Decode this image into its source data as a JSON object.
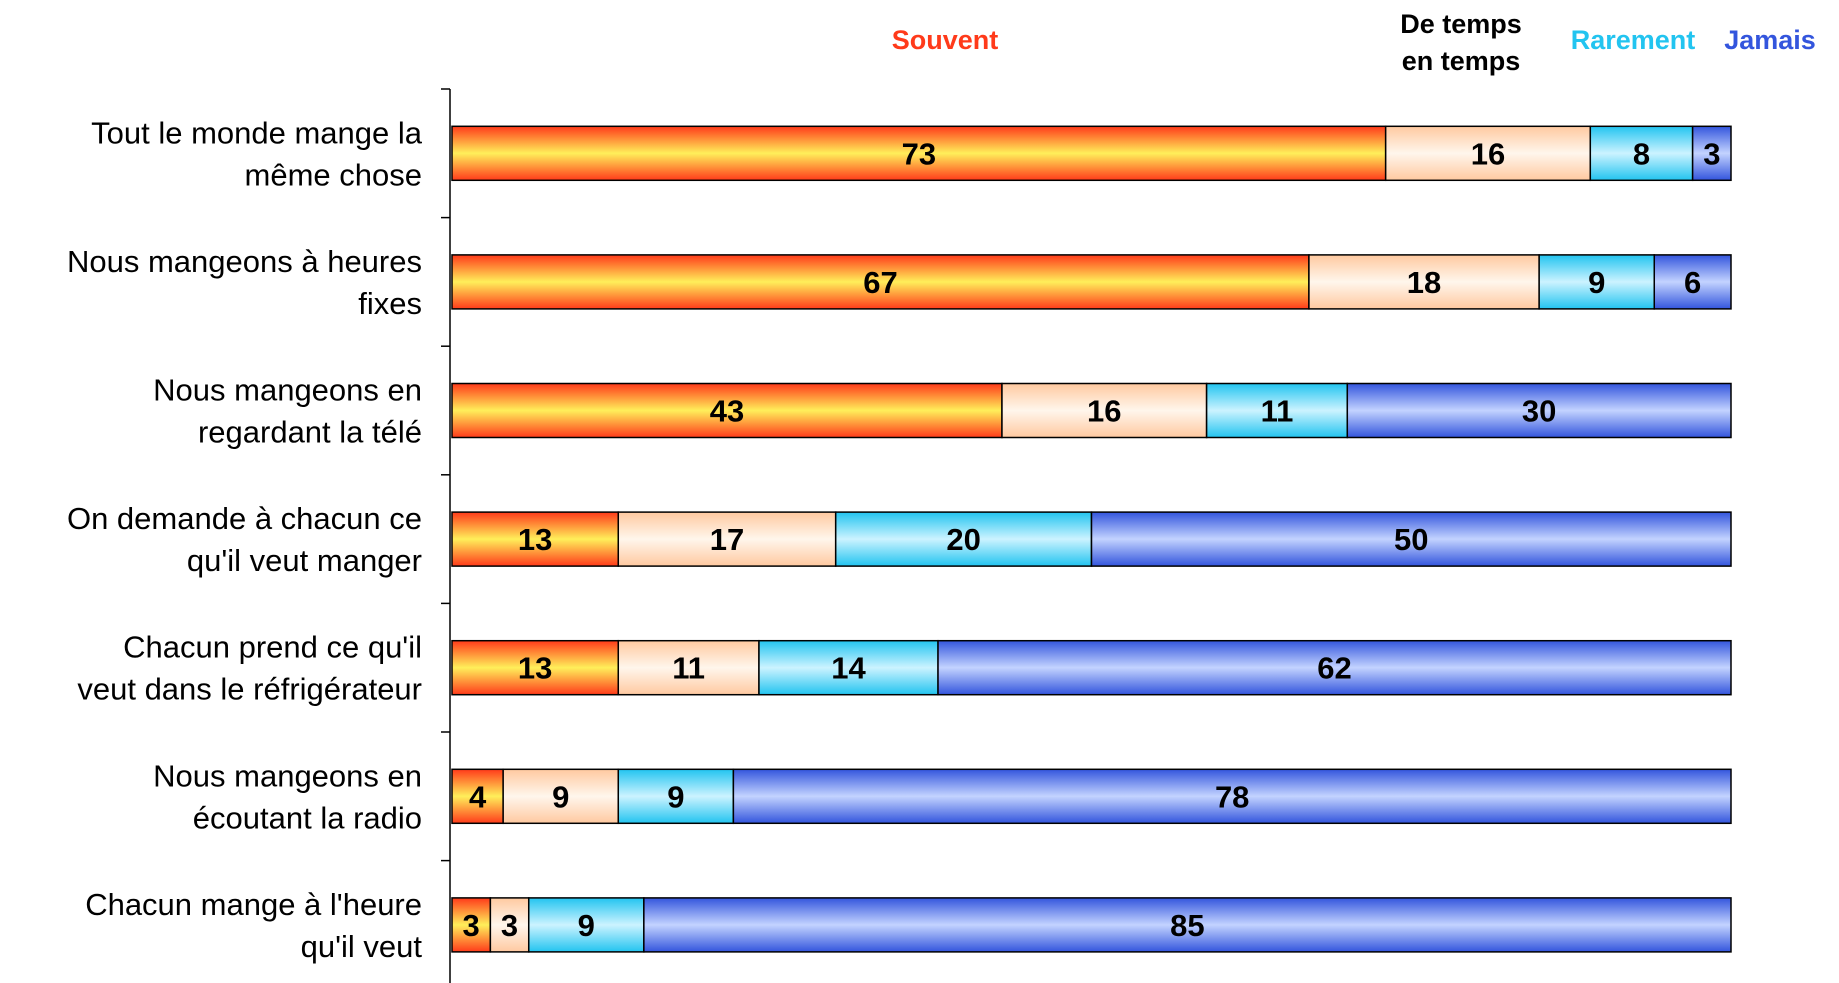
{
  "chart_data": {
    "type": "bar",
    "orientation": "horizontal",
    "stacked": "percent",
    "categories": [
      [
        "Tout le monde mange la",
        "même chose"
      ],
      [
        "Nous mangeons à heures",
        "fixes"
      ],
      [
        "Nous mangeons en",
        "regardant la télé"
      ],
      [
        "On demande à chacun ce",
        "qu'il veut manger"
      ],
      [
        "Chacun prend ce qu'il",
        "veut dans le réfrigérateur"
      ],
      [
        "Nous mangeons en",
        "écoutant la radio"
      ],
      [
        "Chacun mange à l'heure",
        "qu'il veut"
      ]
    ],
    "series": [
      {
        "name": [
          "Souvent"
        ],
        "color": "#ff3a1a",
        "light": "#ffef5a",
        "values": [
          73,
          67,
          43,
          13,
          13,
          4,
          3
        ]
      },
      {
        "name": [
          "De temps",
          "en temps"
        ],
        "color": "#000000",
        "light": "#fff6ec",
        "dark": "#ffc9a0",
        "values": [
          16,
          18,
          16,
          17,
          11,
          9,
          3
        ]
      },
      {
        "name": [
          "Rarement"
        ],
        "color": "#22c4f0",
        "light": "#ccf3ff",
        "values": [
          8,
          9,
          11,
          20,
          14,
          9,
          9
        ]
      },
      {
        "name": [
          "Jamais"
        ],
        "color": "#3355dd",
        "light": "#c3d3ff",
        "values": [
          3,
          6,
          30,
          50,
          62,
          78,
          85
        ]
      }
    ],
    "legend_position": "top",
    "grid": false
  }
}
